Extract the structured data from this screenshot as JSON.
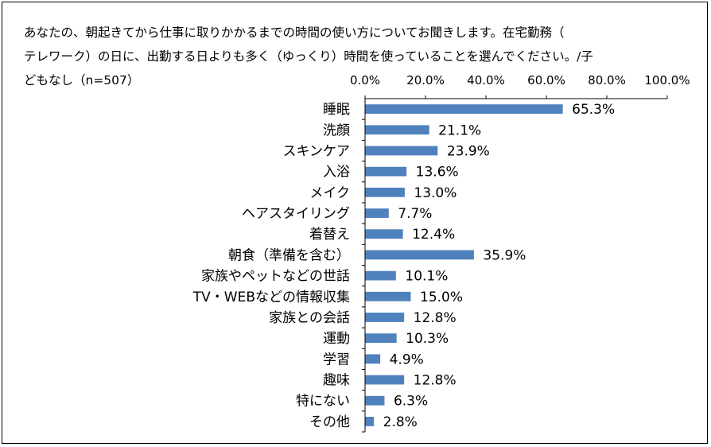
{
  "chart_data": {
    "type": "bar",
    "orientation": "horizontal",
    "title_lines": [
      "あなたの、朝起きてから仕事に取りかかるまでの時間の使い方についてお聞きします。在宅勤務（",
      "テレワーク）の日に、出勤する日よりも多く（ゆっくり）時間を使っていることを選んでください。/子",
      "どもなし（n=507）"
    ],
    "categories": [
      "睡眠",
      "洗顔",
      "スキンケア",
      "入浴",
      "メイク",
      "ヘアスタイリング",
      "着替え",
      "朝食（準備を含む）",
      "家族やペットなどの世話",
      "TV・WEBなどの情報収集",
      "家族との会話",
      "運動",
      "学習",
      "趣味",
      "特にない",
      "その他"
    ],
    "values": [
      65.3,
      21.1,
      23.9,
      13.6,
      13.0,
      7.7,
      12.4,
      35.9,
      10.1,
      15.0,
      12.8,
      10.3,
      4.9,
      12.8,
      6.3,
      2.8
    ],
    "value_labels": [
      "65.3%",
      "21.1%",
      "23.9%",
      "13.6%",
      "13.0%",
      "7.7%",
      "12.4%",
      "35.9%",
      "10.1%",
      "15.0%",
      "12.8%",
      "10.3%",
      "4.9%",
      "12.8%",
      "6.3%",
      "2.8%"
    ],
    "xlim": [
      0,
      100
    ],
    "xticks": [
      0,
      20,
      40,
      60,
      80,
      100
    ],
    "xtick_labels": [
      "0.0%",
      "20.0%",
      "40.0%",
      "60.0%",
      "80.0%",
      "100.0%"
    ],
    "axis_position": "top",
    "grid": false,
    "bar_color": "#4F81BD"
  }
}
